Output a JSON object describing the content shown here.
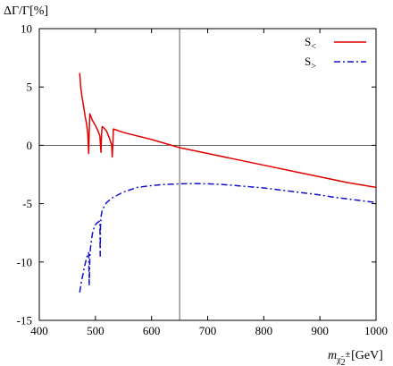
{
  "chart_data": {
    "type": "line",
    "ylabel": "ΔΓ/Γ[%]",
    "xlabel": {
      "var": "m",
      "sub_base": "χ̃",
      "sub_index": "2",
      "sub_sup": "±",
      "unit": "[GeV]"
    },
    "xlim": [
      400,
      1000
    ],
    "ylim": [
      -15,
      10
    ],
    "xticks": [
      400,
      500,
      600,
      700,
      800,
      900,
      1000
    ],
    "yticks": [
      -15,
      -10,
      -5,
      0,
      5,
      10
    ],
    "grid": false,
    "reference_lines": {
      "x": 650,
      "y": 0
    },
    "legend_position": "top-right",
    "series": [
      {
        "name": "S<",
        "legend_main": "S",
        "legend_sub": "<",
        "color": "#e00000",
        "dash": "solid",
        "x": [
          472,
          474,
          476,
          478,
          480,
          482,
          484,
          486,
          487,
          488,
          489,
          490,
          495,
          500,
          505,
          508,
          509,
          510,
          511,
          512,
          515,
          520,
          525,
          529,
          530,
          531,
          532,
          550,
          600,
          650,
          700,
          750,
          800,
          850,
          900,
          950,
          1000
        ],
        "y": [
          6.2,
          4.9,
          4.2,
          3.6,
          3.0,
          2.4,
          1.9,
          1.2,
          0.4,
          -0.7,
          1.2,
          2.7,
          2.1,
          1.7,
          1.2,
          0.8,
          0.0,
          -0.6,
          1.0,
          1.6,
          1.5,
          1.2,
          0.6,
          0.0,
          -1.0,
          0.0,
          1.4,
          1.1,
          0.5,
          -0.2,
          -0.7,
          -1.2,
          -1.7,
          -2.2,
          -2.7,
          -3.2,
          -3.6
        ]
      },
      {
        "name": "S>",
        "legend_main": "S",
        "legend_sub": ">",
        "color": "#1010d0",
        "dash": "dash-dot",
        "x": [
          472,
          475,
          478,
          481,
          484,
          486,
          487,
          488,
          489,
          490,
          491,
          493,
          495,
          498,
          500,
          502,
          504,
          506,
          507,
          508,
          508.5,
          509,
          510,
          512,
          515,
          520,
          530,
          550,
          575,
          600,
          625,
          650,
          675,
          700,
          725,
          750,
          775,
          800,
          825,
          850,
          875,
          900,
          925,
          950,
          975,
          1000
        ],
        "y": [
          -12.6,
          -11.7,
          -11.0,
          -10.3,
          -9.7,
          -9.4,
          -9.3,
          -9.2,
          -12.0,
          -9.7,
          -8.9,
          -8.1,
          -7.5,
          -7.0,
          -6.8,
          -6.7,
          -6.6,
          -6.55,
          -6.5,
          -6.6,
          -9.5,
          -7.0,
          -6.1,
          -5.6,
          -5.3,
          -4.9,
          -4.5,
          -4.0,
          -3.6,
          -3.45,
          -3.35,
          -3.3,
          -3.28,
          -3.3,
          -3.35,
          -3.45,
          -3.55,
          -3.65,
          -3.8,
          -3.95,
          -4.1,
          -4.25,
          -4.45,
          -4.6,
          -4.75,
          -4.9
        ]
      }
    ]
  }
}
